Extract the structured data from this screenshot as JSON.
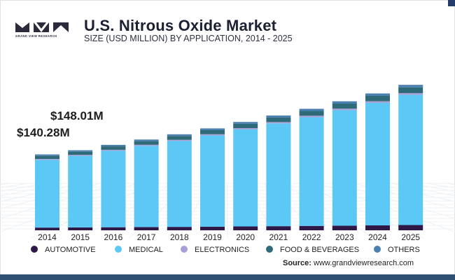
{
  "brand": {
    "logo_text": "GRAND VIEW RESEARCH"
  },
  "header": {
    "title": "U.S. Nitrous Oxide Market",
    "subtitle": "SIZE (USD MILLION) BY APPLICATION, 2014 - 2025"
  },
  "annotations": {
    "value_2014": "$140.28M",
    "value_2015": "$148.01M"
  },
  "source": {
    "label": "Source:",
    "url": "www.grandviewresearch.com"
  },
  "colors": {
    "automotive": "#2d1848",
    "medical": "#5bc8f5",
    "electronics": "#a99fd6",
    "food_beverages": "#2e6a78",
    "others": "#4a7fb0"
  },
  "chart_data": {
    "type": "bar",
    "stacked": true,
    "title": "U.S. Nitrous Oxide Market",
    "subtitle": "SIZE (USD MILLION) BY APPLICATION, 2014 - 2025",
    "xlabel": "",
    "ylabel": "",
    "ylim": [
      0,
      330
    ],
    "grid": false,
    "legend_position": "bottom",
    "categories": [
      "2014",
      "2015",
      "2016",
      "2017",
      "2018",
      "2019",
      "2020",
      "2021",
      "2022",
      "2023",
      "2024",
      "2025"
    ],
    "series": [
      {
        "name": "AUTOMOTIVE",
        "color": "#2d1848",
        "values": [
          5,
          5.3,
          5.6,
          6,
          6.3,
          6.7,
          7.2,
          7.6,
          8.1,
          8.6,
          9.1,
          9.7
        ]
      },
      {
        "name": "MEDICAL",
        "color": "#5bc8f5",
        "values": [
          125.3,
          132.3,
          141.4,
          150.1,
          158.9,
          168.6,
          179.3,
          190,
          201,
          213.5,
          226.5,
          240.8
        ]
      },
      {
        "name": "ELECTRONICS",
        "color": "#a99fd6",
        "values": [
          1.7,
          1.8,
          1.9,
          2,
          2.1,
          2.3,
          2.4,
          2.5,
          2.7,
          2.8,
          3,
          3.2
        ]
      },
      {
        "name": "FOOD & BEVERAGES",
        "color": "#2e6a78",
        "values": [
          5.6,
          6,
          6.3,
          6.7,
          7.1,
          7.5,
          7.9,
          8.4,
          8.8,
          9.4,
          9.9,
          10.5
        ]
      },
      {
        "name": "OTHERS",
        "color": "#4a7fb0",
        "values": [
          2.7,
          2.6,
          2.8,
          3,
          3.1,
          3.3,
          3.5,
          3.7,
          4,
          4.2,
          4.5,
          4.7
        ]
      }
    ],
    "totals_labeled": {
      "2014": "$140.28M",
      "2015": "$148.01M"
    }
  }
}
